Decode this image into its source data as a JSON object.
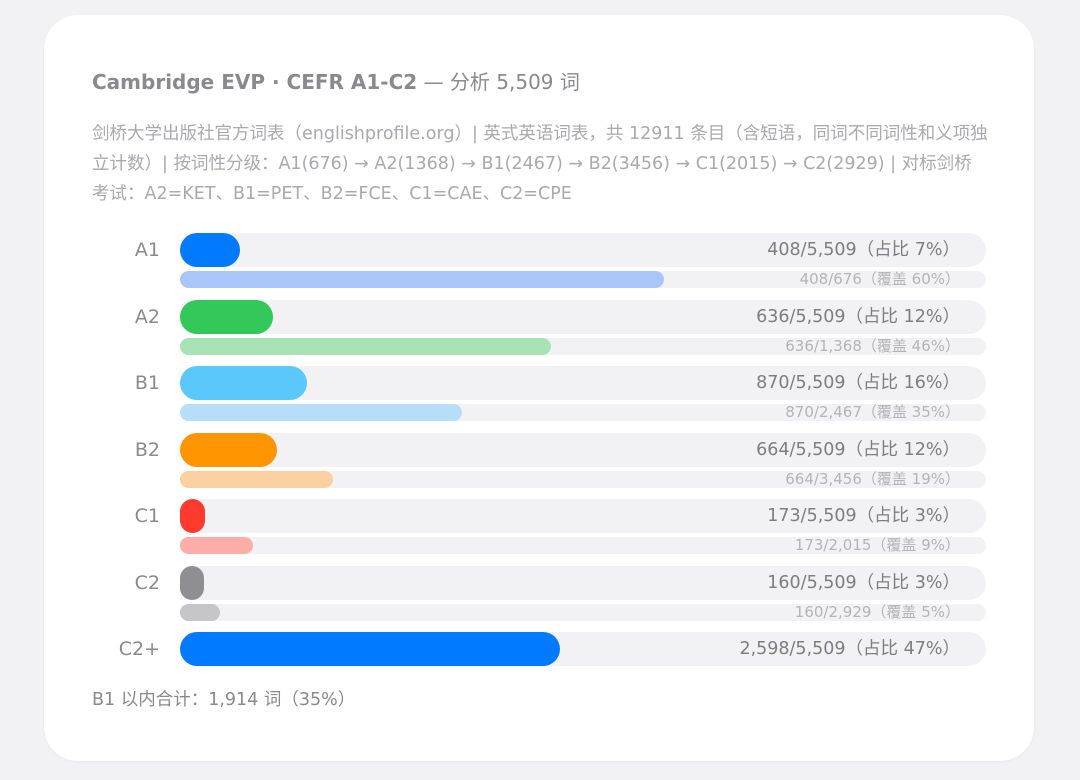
{
  "header": {
    "title_bold": "Cambridge EVP · CEFR A1-C2",
    "title_rest": " — 分析 5,509 词",
    "description": "剑桥大学出版社官方词表（englishprofile.org）| 英式英语词表，共 12911 条目（含短语，同词不同词性和义项独立计数）| 按词性分级：A1(676) → A2(1368) → B1(2467) → B2(3456) → C1(2015) → C2(2929) | 对标剑桥考试：A2=KET、B1=PET、B2=FCE、C1=CAE、C2=CPE"
  },
  "footer": {
    "summary": "B1 以内合计：1,914 词（35%）"
  },
  "chart_data": {
    "type": "bar",
    "orientation": "horizontal",
    "total_words": 5509,
    "categories": [
      "A1",
      "A2",
      "B1",
      "B2",
      "C1",
      "C2",
      "C2+"
    ],
    "series": [
      {
        "values": [
          408,
          636,
          870,
          664,
          173,
          160,
          2598
        ],
        "labels": [
          "408/5,509（占比 7%）",
          "636/5,509（占比 12%）",
          "870/5,509（占比 16%）",
          "664/5,509（占比 12%）",
          "173/5,509（占比 3%）",
          "160/5,509（占比 3%）",
          "2,598/5,509（占比 47%）"
        ],
        "colors": [
          "#007aff",
          "#34c759",
          "#5ac8fa",
          "#ff9500",
          "#ff3b30",
          "#8e8e93",
          "#007aff"
        ]
      },
      {
        "values": [
          60,
          46,
          35,
          19,
          9,
          5,
          null
        ],
        "labels": [
          "408/676（覆盖 60%）",
          "636/1,368（覆盖 46%）",
          "870/2,467（覆盖 35%）",
          "664/3,456（覆盖 19%）",
          "173/2,015（覆盖 9%）",
          "160/2,929（覆盖 5%）",
          null
        ],
        "colors": [
          "#a8c6fa",
          "#a9e2b4",
          "#b6def8",
          "#fbcf9f",
          "#fdada8",
          "#c6c6c9",
          null
        ]
      }
    ],
    "coverage_totals": [
      676,
      1368,
      2467,
      3456,
      2015,
      2929,
      null
    ]
  }
}
